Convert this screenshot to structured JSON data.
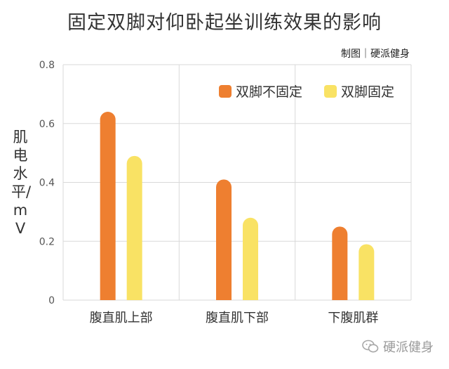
{
  "title": "固定双脚对仰卧起坐训练效果的影响",
  "credit": "制图｜硬派健身",
  "watermark": "硬派健身",
  "watermark_icon": "wechat-icon",
  "chart_data": {
    "type": "bar",
    "categories": [
      "腹直肌上部",
      "腹直肌下部",
      "下腹肌群"
    ],
    "series": [
      {
        "name": "双脚不固定",
        "values": [
          0.64,
          0.41,
          0.25
        ],
        "color": "#ee7f30"
      },
      {
        "name": "双脚固定",
        "values": [
          0.49,
          0.28,
          0.19
        ],
        "color": "#f9e264"
      }
    ],
    "ylabel": "肌电水平/mV",
    "ylim": [
      0,
      0.8
    ],
    "yticks": [
      "0",
      "0.2",
      "0.4",
      "0.6",
      "0.8"
    ],
    "grid": true,
    "legend_position": "top-right"
  }
}
